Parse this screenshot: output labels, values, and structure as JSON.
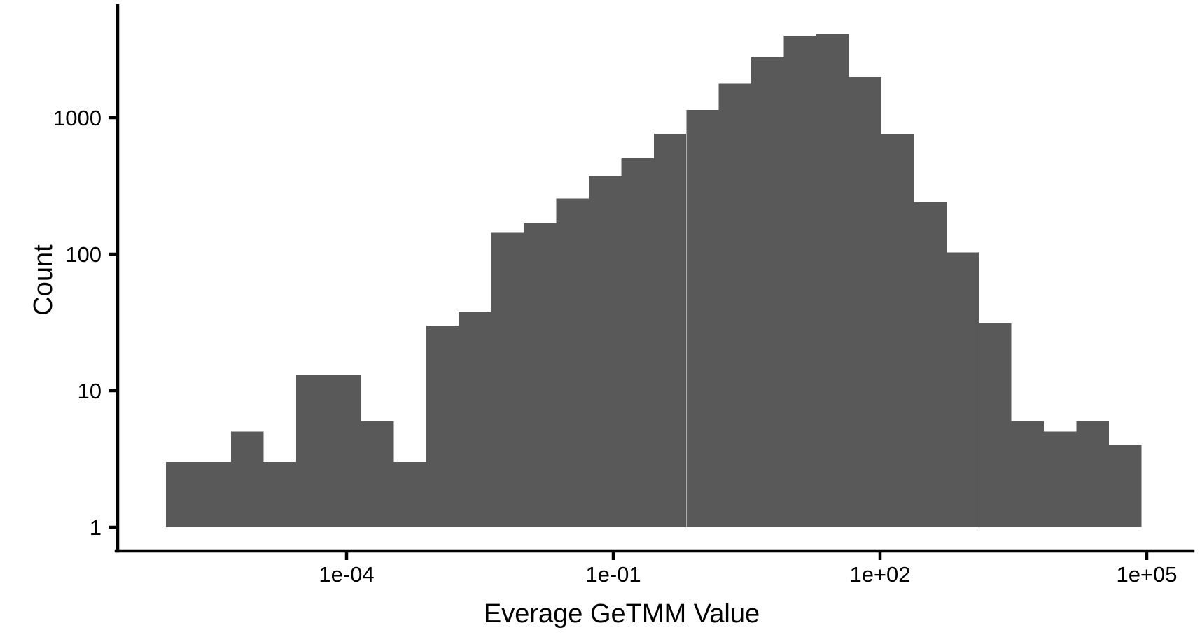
{
  "chart_data": {
    "type": "bar",
    "subtype": "histogram",
    "title": "",
    "xlabel": "Everage GeTMM Value",
    "ylabel": "Count",
    "x_scale": "log10",
    "y_scale": "log10",
    "grid": "off",
    "legend": "none",
    "bar_color": "#595959",
    "axis_color": "#000000",
    "background_color": "#ffffff",
    "x_ticks": [
      {
        "label": "1e-04",
        "log10": -4
      },
      {
        "label": "1e-01",
        "log10": -1
      },
      {
        "label": "1e+02",
        "log10": 2
      },
      {
        "label": "1e+05",
        "log10": 5
      }
    ],
    "y_ticks": [
      {
        "label": "1",
        "log10": 0
      },
      {
        "label": "10",
        "log10": 1
      },
      {
        "label": "100",
        "log10": 2
      },
      {
        "label": "1000",
        "log10": 3
      }
    ],
    "x_axis_range_log10": [
      -6.58,
      5.52
    ],
    "y_axis_range_log10": [
      -0.17,
      3.82
    ],
    "bar_baseline_count": 1,
    "bins": {
      "log10_start": -6.03,
      "log10_width": 0.3657,
      "n_bins": 30,
      "counts": [
        3,
        3,
        5,
        3,
        13,
        13,
        6,
        3,
        30,
        38,
        143,
        168,
        256,
        374,
        505,
        760,
        1140,
        1770,
        2760,
        3990,
        4080,
        1980,
        755,
        240,
        103,
        31,
        6,
        5,
        6,
        4
      ]
    }
  }
}
